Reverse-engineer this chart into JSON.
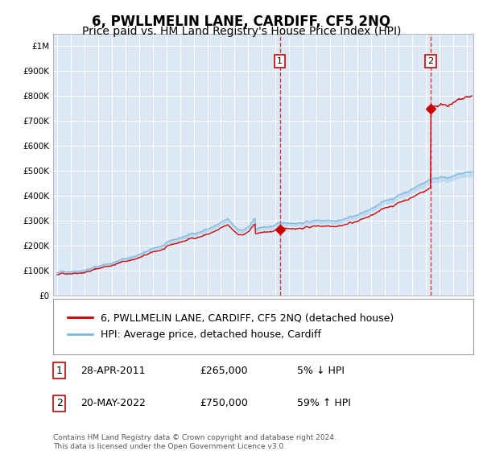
{
  "title": "6, PWLLMELIN LANE, CARDIFF, CF5 2NQ",
  "subtitle": "Price paid vs. HM Land Registry's House Price Index (HPI)",
  "ylim": [
    0,
    1050000
  ],
  "xlim_start": 1994.7,
  "xlim_end": 2025.5,
  "yticks": [
    0,
    100000,
    200000,
    300000,
    400000,
    500000,
    600000,
    700000,
    800000,
    900000,
    1000000
  ],
  "ytick_labels": [
    "£0",
    "£100K",
    "£200K",
    "£300K",
    "£400K",
    "£500K",
    "£600K",
    "£700K",
    "£800K",
    "£900K",
    "£1M"
  ],
  "plot_bg_color": "#dce9f5",
  "hpi_line_color": "#7fb8e0",
  "price_line_color": "#cc0000",
  "marker_color": "#cc0000",
  "dashed_line_color": "#cc0000",
  "transaction1_x": 2011.32,
  "transaction1_y": 265000,
  "transaction1_label": "1",
  "transaction1_date": "28-APR-2011",
  "transaction1_price": "£265,000",
  "transaction1_hpi": "5% ↓ HPI",
  "transaction2_x": 2022.38,
  "transaction2_y": 750000,
  "transaction2_label": "2",
  "transaction2_date": "20-MAY-2022",
  "transaction2_price": "£750,000",
  "transaction2_hpi": "59% ↑ HPI",
  "legend_label1": "6, PWLLMELIN LANE, CARDIFF, CF5 2NQ (detached house)",
  "legend_label2": "HPI: Average price, detached house, Cardiff",
  "footnote": "Contains HM Land Registry data © Crown copyright and database right 2024.\nThis data is licensed under the Open Government Licence v3.0.",
  "title_fontsize": 12,
  "subtitle_fontsize": 10,
  "tick_fontsize": 7.5,
  "legend_fontsize": 9,
  "table_fontsize": 9
}
